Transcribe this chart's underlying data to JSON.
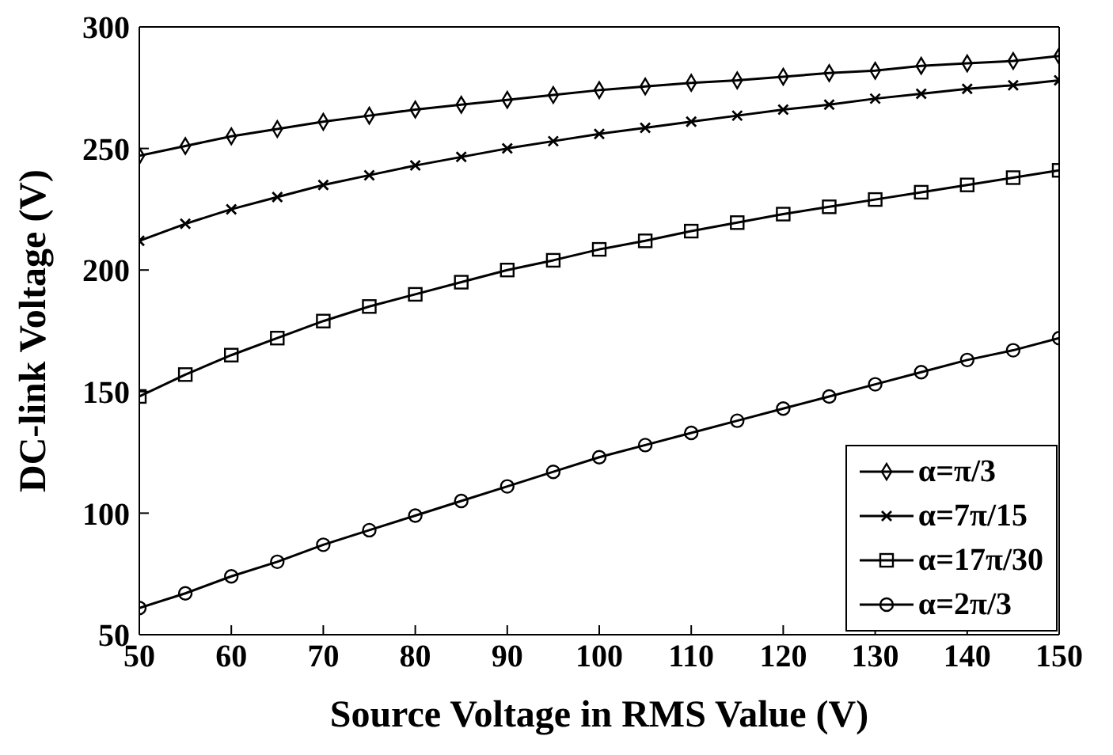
{
  "chart_data": {
    "type": "line",
    "xlabel": "Source Voltage in RMS Value (V)",
    "ylabel": "DC-link Voltage (V)",
    "x": [
      50,
      55,
      60,
      65,
      70,
      75,
      80,
      85,
      90,
      95,
      100,
      105,
      110,
      115,
      120,
      125,
      130,
      135,
      140,
      145,
      150
    ],
    "series": [
      {
        "name": "α=π/3",
        "color": "#000000",
        "marker": "diamond",
        "values": [
          247,
          251,
          255,
          258,
          261,
          263.5,
          266,
          268,
          270,
          272,
          274,
          275.5,
          277,
          278,
          279.5,
          281,
          282,
          284,
          285,
          286,
          288
        ]
      },
      {
        "name": "α=7π/15",
        "color": "#000000",
        "marker": "cross",
        "values": [
          212,
          219,
          225,
          230,
          235,
          239,
          243,
          246.5,
          250,
          253,
          256,
          258.5,
          261,
          263.5,
          266,
          268,
          270.5,
          272.5,
          274.5,
          276,
          278
        ]
      },
      {
        "name": "α=17π/30",
        "color": "#000000",
        "marker": "square",
        "values": [
          148,
          157,
          165,
          172,
          179,
          185,
          190,
          195,
          200,
          204,
          208.5,
          212,
          216,
          219.5,
          223,
          226,
          229,
          232,
          235,
          238,
          241
        ]
      },
      {
        "name": "α=2π/3",
        "color": "#000000",
        "marker": "circle",
        "values": [
          61,
          67,
          74,
          80,
          87,
          93,
          99,
          105,
          111,
          117,
          123,
          128,
          133,
          138,
          143,
          148,
          153,
          158,
          163,
          167,
          172
        ]
      }
    ],
    "xlim": [
      50,
      150
    ],
    "xticks": [
      50,
      60,
      70,
      80,
      90,
      100,
      110,
      120,
      130,
      140,
      150
    ],
    "ylim": [
      50,
      300
    ],
    "yticks": [
      50,
      100,
      150,
      200,
      250,
      300
    ],
    "grid": false,
    "legend": "bottom right",
    "line_style": "solid"
  }
}
